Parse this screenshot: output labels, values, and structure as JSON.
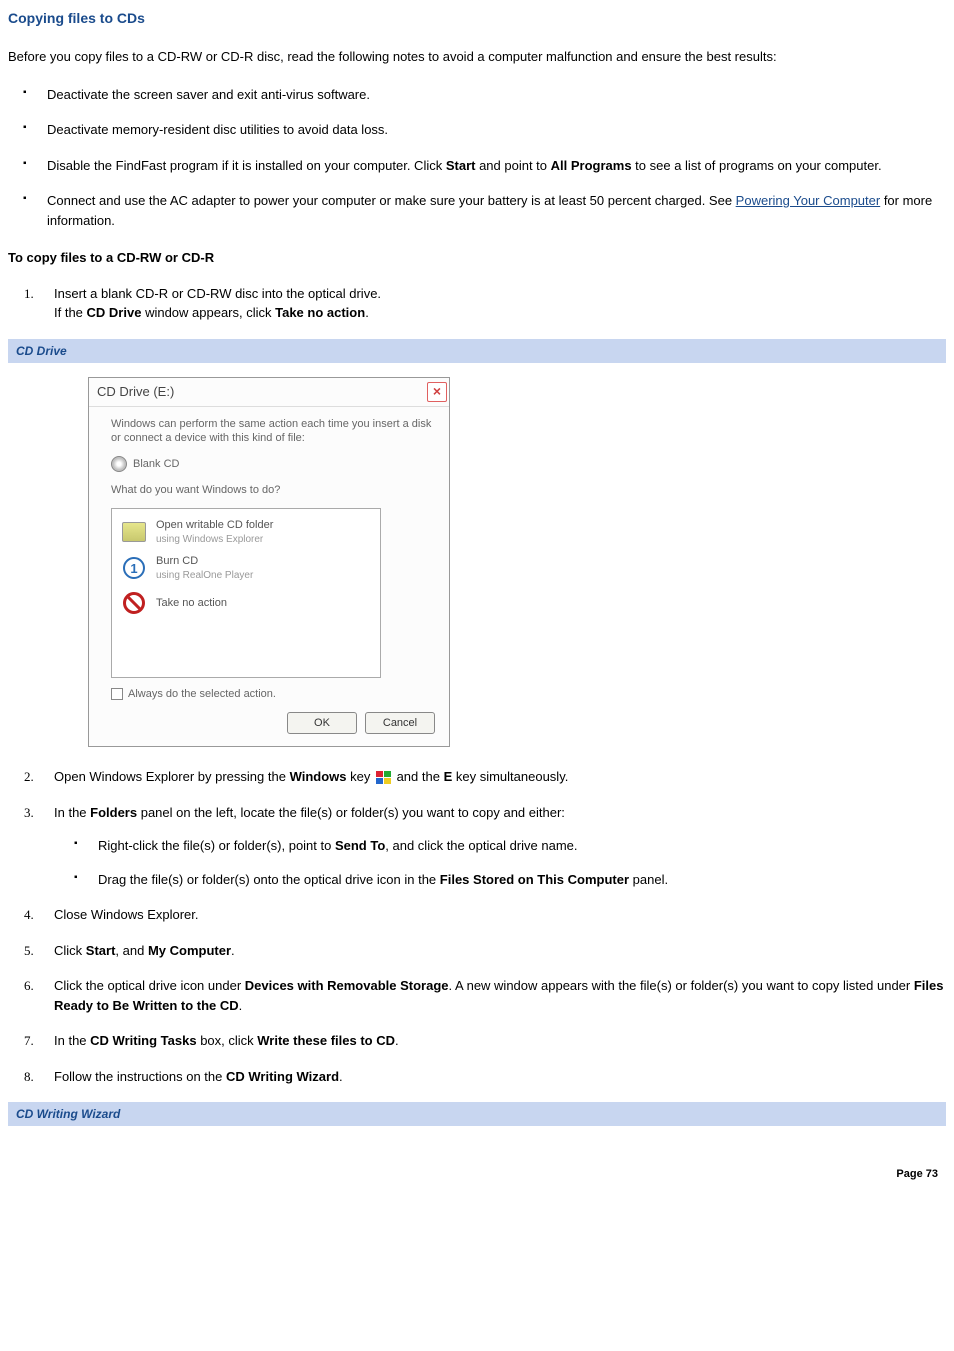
{
  "title": "Copying files to CDs",
  "intro": "Before you copy files to a CD-RW or CD-R disc, read the following notes to avoid a computer malfunction and ensure the best results:",
  "notes": [
    "Deactivate the screen saver and exit anti-virus software.",
    "Deactivate memory-resident disc utilities to avoid data loss."
  ],
  "note3_a": "Disable the FindFast program if it is installed on your computer. Click ",
  "note3_b": " and point to ",
  "note3_c": " to see a list of programs on your computer.",
  "start_label": "Start",
  "allprograms_label": "All Programs",
  "note4_a": "Connect and use the AC adapter to power your computer or make sure your battery is at least 50 percent charged. See ",
  "note4_link": "Powering Your Computer",
  "note4_b": " for more information.",
  "subhead": "To copy files to a CD-RW or CD-R",
  "step1_a": "Insert a blank CD-R or CD-RW disc into the optical drive.",
  "step1_b_a": "If the ",
  "step1_b_b": " window appears, click ",
  "step1_b_c": ".",
  "cddrive_label": "CD Drive",
  "takenoaction_label": "Take no action",
  "bar_cddrive": "CD Drive",
  "dlg": {
    "title": "CD Drive (E:)",
    "body_text": "Windows can perform the same action each time you insert a disk or connect a device with this kind of file:",
    "disc_label": "Blank CD",
    "prompt": "What do you want Windows to do?",
    "opt1_a": "Open writable CD folder",
    "opt1_b": "using Windows Explorer",
    "opt2_a": "Burn CD",
    "opt2_b": "using RealOne Player",
    "opt3": "Take no action",
    "chk": "Always do the selected action.",
    "ok": "OK",
    "cancel": "Cancel"
  },
  "step2_a": "Open Windows Explorer by pressing the ",
  "step2_b": " key ",
  "step2_c": " and the ",
  "step2_d": " key simultaneously.",
  "windows_label": "Windows",
  "ekey_label": "E",
  "step3_a": "In the ",
  "step3_b": " panel on the left, locate the file(s) or folder(s) you want to copy and either:",
  "folders_label": "Folders",
  "step3_s1_a": "Right-click the file(s) or folder(s), point to ",
  "step3_s1_b": ", and click the optical drive",
  "step3_s1_c": " name.",
  "sendto_label": "Send To",
  "step3_s2_a": "Drag the file(s) or folder(s) onto the optical drive icon in the ",
  "step3_s2_b": " panel.",
  "filesstored_label": "Files Stored on This Computer",
  "step4": "Close Windows Explorer.",
  "step5_a": "Click ",
  "step5_b": ", and ",
  "step5_c": ".",
  "mycomputer_label": "My Computer",
  "step6_a": "Click the optical drive icon under ",
  "step6_b": ". A new window appears with the file(s) or folder(s) you want to copy listed under ",
  "step6_c": ".",
  "devices_label": "Devices with Removable Storage",
  "filesready_label": "Files Ready to Be Written to the CD",
  "step7_a": "In the ",
  "step7_b": " box, click ",
  "step7_c": ".",
  "cdwritingtasks_label": "CD Writing Tasks",
  "writethese_label": "Write these files to CD",
  "step8_a": "Follow the instructions on the ",
  "step8_b": ".",
  "cdwizard_label": "CD Writing Wizard",
  "bar_cdwiz": "CD Writing Wizard",
  "page_footer": "Page 73",
  "colors": {
    "heading": "#1a4b8c",
    "bar_bg": "#c8d6f0"
  }
}
